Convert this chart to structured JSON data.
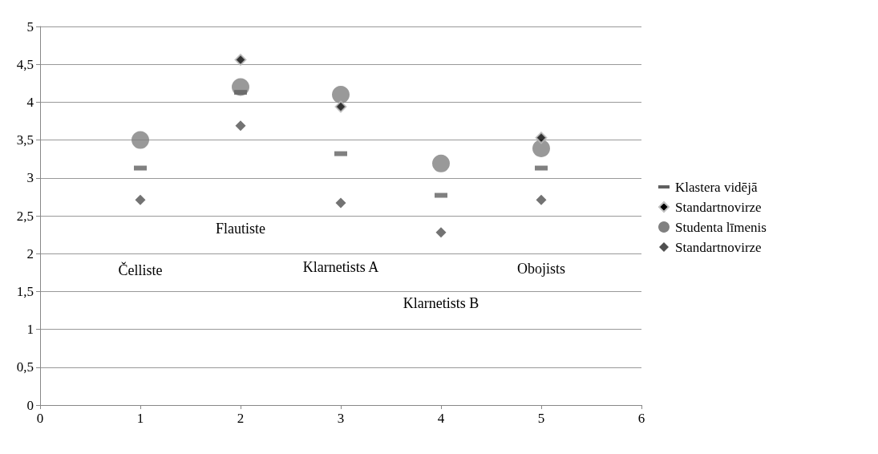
{
  "chart_data": {
    "type": "scatter",
    "x": [
      1,
      2,
      3,
      4,
      5
    ],
    "series": [
      {
        "name": "Klastera vidējā",
        "color": "#606060",
        "marker": "square",
        "values": [
          3.13,
          4.13,
          3.32,
          2.77,
          3.13
        ]
      },
      {
        "name": "Standartnovirze",
        "color": "#000000",
        "marker": "diamond",
        "values": [
          null,
          4.56,
          3.94,
          null,
          3.53
        ]
      },
      {
        "name": "Studenta līmenis",
        "color": "#808080",
        "marker": "circle",
        "values": [
          3.5,
          4.2,
          4.1,
          3.19,
          3.39
        ]
      },
      {
        "name": "Standartnovirze",
        "color": "#505050",
        "marker": "diamond",
        "values": [
          2.71,
          3.69,
          2.67,
          2.28,
          2.71
        ]
      }
    ],
    "annotations": [
      "Čelliste",
      "Flautiste",
      "Klarnetists A",
      "Klarnetists B",
      "Obojists"
    ],
    "xlim": [
      0,
      6
    ],
    "xticks": [
      0,
      1,
      2,
      3,
      4,
      5,
      6
    ],
    "ylim": [
      0,
      5
    ],
    "yticks": [
      0,
      {
        "value": 0.5,
        "label": "0,5"
      },
      1,
      {
        "value": 1.5,
        "label": "1,5"
      },
      2,
      {
        "value": 2.5,
        "label": "2,5"
      },
      3,
      {
        "value": 3.5,
        "label": "3,5"
      },
      4,
      {
        "value": 4.5,
        "label": "4,5"
      },
      5
    ],
    "grid": "y",
    "legend": "right"
  }
}
